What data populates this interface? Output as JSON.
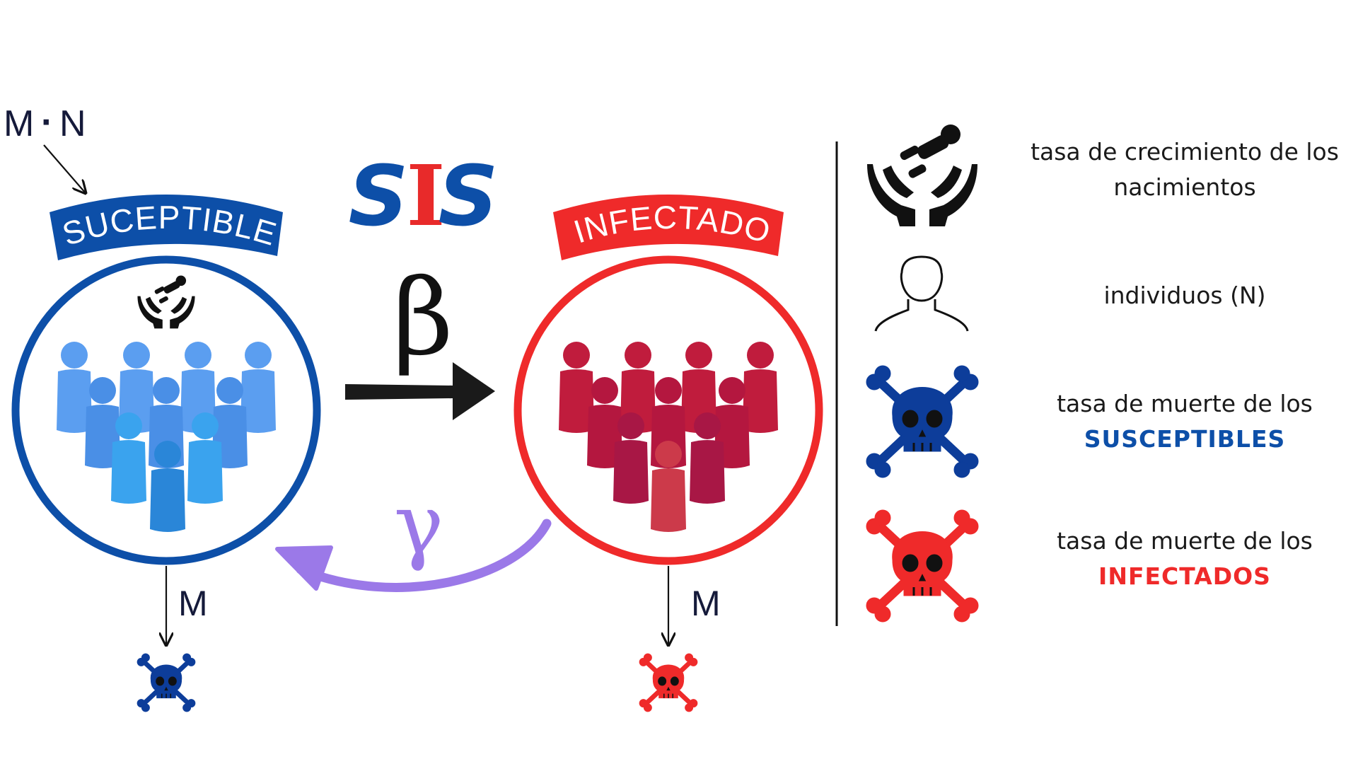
{
  "model": {
    "title_left": "S",
    "title_mid": "I",
    "title_right": "S",
    "birth_term": {
      "m": "M",
      "dot": "·",
      "n": "N"
    },
    "infection_rate": "β",
    "recovery_rate": "γ",
    "death_rate_susceptible": "M",
    "death_rate_infected": "M"
  },
  "compartments": {
    "susceptible": {
      "label": "SUCEPTIBLE",
      "color": "#0d4fa8"
    },
    "infected": {
      "label": "INFECTADO",
      "color": "#ef2a2a"
    }
  },
  "legend": {
    "births": {
      "line1": "tasa de crecimiento de los",
      "line2": "nacimientos"
    },
    "individuals": {
      "line1": "individuos (N)"
    },
    "death_susceptible": {
      "line1": "tasa de muerte de los",
      "line2": "SUSCEPTIBLES",
      "color": "#0d4fa8"
    },
    "death_infected": {
      "line1": "tasa de muerte de los",
      "line2": "INFECTADOS",
      "color": "#ef2a2a"
    }
  },
  "colors": {
    "susceptible": "#0d4fa8",
    "infected": "#ef2a2a",
    "recovery_arrow": "#9b79e8",
    "dark": "#111111"
  }
}
